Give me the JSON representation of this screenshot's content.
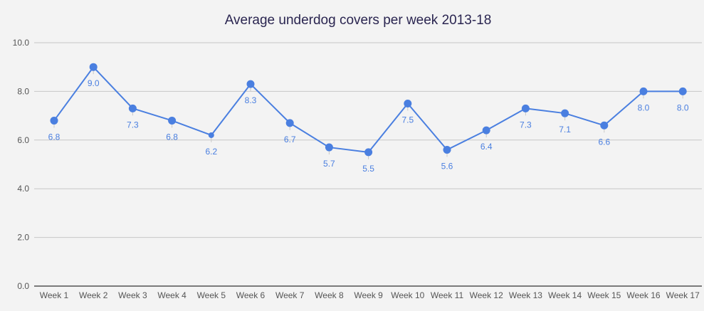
{
  "chart_data": {
    "type": "line",
    "title": "Average underdog covers per week 2013-18",
    "xlabel": "",
    "ylabel": "",
    "categories": [
      "Week 1",
      "Week 2",
      "Week 3",
      "Week 4",
      "Week 5",
      "Week 6",
      "Week 7",
      "Week 8",
      "Week 9",
      "Week 10",
      "Week 11",
      "Week 12",
      "Week 13",
      "Week 14",
      "Week 15",
      "Week 16",
      "Week 17"
    ],
    "series": [
      {
        "values": [
          6.8,
          9.0,
          7.3,
          6.8,
          6.2,
          8.3,
          6.7,
          5.7,
          5.5,
          7.5,
          5.6,
          6.4,
          7.3,
          7.1,
          6.6,
          8.0,
          8.0
        ],
        "labels": [
          "6.8",
          "9.0",
          "7.3",
          "6.8",
          "6.2",
          "8.3",
          "6.7",
          "5.7",
          "5.5",
          "7.5",
          "5.6",
          "6.4",
          "7.3",
          "7.1",
          "6.6",
          "8.0",
          "8.0"
        ],
        "color": "#4a7fe0"
      }
    ],
    "ylim": [
      0,
      10
    ],
    "yticks": [
      0,
      2,
      4,
      6,
      8,
      10
    ],
    "ytick_labels": [
      "0.0",
      "2.0",
      "4.0",
      "6.0",
      "8.0",
      "10.0"
    ],
    "grid": true,
    "legend": "none",
    "background": "#f3f3f3",
    "gridline_color": "#c6c6c6"
  }
}
